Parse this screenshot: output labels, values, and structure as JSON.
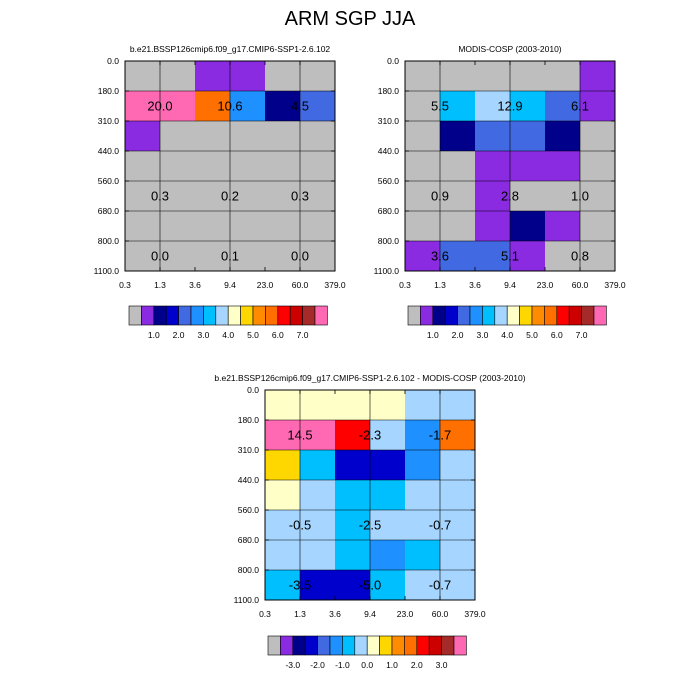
{
  "title": "ARM SGP JJA",
  "colors": {
    "gray": "#bebebe",
    "violet": "#8a2be2",
    "navy": "#00008b",
    "mediumblue": "#0000cd",
    "royalblue": "#4169e1",
    "dodgerblue": "#1e90ff",
    "deepskyblue": "#00bfff",
    "lightskyblue": "#a6d6ff",
    "lightyellow": "#ffffc8",
    "gold": "#ffd700",
    "orange": "#ff8c00",
    "darkorange": "#ff7000",
    "red": "#ff0000",
    "crimson": "#cd0000",
    "firebrick": "#a52a2a",
    "hotpink": "#ff69b4",
    "black": "#000000"
  },
  "chart_data": [
    {
      "type": "heatmap",
      "title": "b.e21.BSSP126cmip6.f09_g17.CMIP6-SSP1-2.6.102",
      "x_ticks": [
        "0.3",
        "1.3",
        "3.6",
        "9.4",
        "23.0",
        "60.0",
        "379.0"
      ],
      "y_ticks": [
        "0.0",
        "180.0",
        "310.0",
        "440.0",
        "560.0",
        "680.0",
        "800.0",
        "1100.0"
      ],
      "grid": true,
      "cells": [
        [
          "gray",
          "gray",
          "violet",
          "violet",
          "gray",
          "gray"
        ],
        [
          "hotpink",
          "hotpink",
          "darkorange",
          "dodgerblue",
          "navy",
          "royalblue"
        ],
        [
          "violet",
          "gray",
          "gray",
          "gray",
          "gray",
          "gray"
        ],
        [
          "gray",
          "gray",
          "gray",
          "gray",
          "gray",
          "gray"
        ],
        [
          "gray",
          "gray",
          "gray",
          "gray",
          "gray",
          "gray"
        ],
        [
          "gray",
          "gray",
          "gray",
          "gray",
          "gray",
          "gray"
        ],
        [
          "gray",
          "gray",
          "gray",
          "gray",
          "gray",
          "gray"
        ]
      ],
      "labels": [
        {
          "text": "20.0",
          "col": 0,
          "row": 1
        },
        {
          "text": "10.6",
          "col": 2,
          "row": 1
        },
        {
          "text": "4.5",
          "col": 4,
          "row": 1
        },
        {
          "text": "0.3",
          "col": 0,
          "row": 4
        },
        {
          "text": "0.2",
          "col": 2,
          "row": 4
        },
        {
          "text": "0.3",
          "col": 4,
          "row": 4
        },
        {
          "text": "0.0",
          "col": 0,
          "row": 6
        },
        {
          "text": "0.1",
          "col": 2,
          "row": 6
        },
        {
          "text": "0.0",
          "col": 4,
          "row": 6
        }
      ],
      "colorbar": {
        "colors": [
          "gray",
          "violet",
          "navy",
          "mediumblue",
          "royalblue",
          "dodgerblue",
          "deepskyblue",
          "lightskyblue",
          "lightyellow",
          "gold",
          "orange",
          "darkorange",
          "red",
          "crimson",
          "firebrick",
          "hotpink"
        ],
        "labels": [
          "1.0",
          "2.0",
          "3.0",
          "4.0",
          "5.0",
          "6.0",
          "7.0"
        ],
        "label_after_box": [
          1,
          3,
          5,
          7,
          9,
          11,
          13
        ]
      }
    },
    {
      "type": "heatmap",
      "title": "MODIS-COSP (2003-2010)",
      "x_ticks": [
        "0.3",
        "1.3",
        "3.6",
        "9.4",
        "23.0",
        "60.0",
        "379.0"
      ],
      "y_ticks": [
        "0.0",
        "180.0",
        "310.0",
        "440.0",
        "560.0",
        "680.0",
        "800.0",
        "1100.0"
      ],
      "grid": true,
      "cells": [
        [
          "gray",
          "gray",
          "gray",
          "gray",
          "gray",
          "violet"
        ],
        [
          "gray",
          "deepskyblue",
          "lightskyblue",
          "deepskyblue",
          "royalblue",
          "violet"
        ],
        [
          "gray",
          "navy",
          "royalblue",
          "royalblue",
          "navy",
          "gray"
        ],
        [
          "gray",
          "gray",
          "violet",
          "violet",
          "violet",
          "gray"
        ],
        [
          "gray",
          "gray",
          "violet",
          "gray",
          "gray",
          "gray"
        ],
        [
          "gray",
          "gray",
          "violet",
          "navy",
          "violet",
          "gray"
        ],
        [
          "violet",
          "royalblue",
          "royalblue",
          "violet",
          "gray",
          "gray"
        ]
      ],
      "labels": [
        {
          "text": "5.5",
          "col": 0,
          "row": 1
        },
        {
          "text": "12.9",
          "col": 2,
          "row": 1
        },
        {
          "text": "6.1",
          "col": 4,
          "row": 1
        },
        {
          "text": "0.9",
          "col": 0,
          "row": 4
        },
        {
          "text": "2.8",
          "col": 2,
          "row": 4
        },
        {
          "text": "1.0",
          "col": 4,
          "row": 4
        },
        {
          "text": "3.6",
          "col": 0,
          "row": 6
        },
        {
          "text": "5.1",
          "col": 2,
          "row": 6
        },
        {
          "text": "0.8",
          "col": 4,
          "row": 6
        }
      ],
      "colorbar": {
        "colors": [
          "gray",
          "violet",
          "navy",
          "mediumblue",
          "royalblue",
          "dodgerblue",
          "deepskyblue",
          "lightskyblue",
          "lightyellow",
          "gold",
          "orange",
          "darkorange",
          "red",
          "crimson",
          "firebrick",
          "hotpink"
        ],
        "labels": [
          "1.0",
          "2.0",
          "3.0",
          "4.0",
          "5.0",
          "6.0",
          "7.0"
        ],
        "label_after_box": [
          1,
          3,
          5,
          7,
          9,
          11,
          13
        ]
      }
    },
    {
      "type": "heatmap",
      "title": "b.e21.BSSP126cmip6.f09_g17.CMIP6-SSP1-2.6.102 - MODIS-COSP (2003-2010)",
      "x_ticks": [
        "0.3",
        "1.3",
        "3.6",
        "9.4",
        "23.0",
        "60.0",
        "379.0"
      ],
      "y_ticks": [
        "0.0",
        "180.0",
        "310.0",
        "440.0",
        "560.0",
        "680.0",
        "800.0",
        "1100.0"
      ],
      "grid": true,
      "cells": [
        [
          "lightyellow",
          "lightyellow",
          "lightyellow",
          "lightyellow",
          "lightskyblue",
          "lightskyblue"
        ],
        [
          "hotpink",
          "hotpink",
          "red",
          "lightskyblue",
          "dodgerblue",
          "darkorange"
        ],
        [
          "gold",
          "deepskyblue",
          "mediumblue",
          "mediumblue",
          "dodgerblue",
          "lightskyblue"
        ],
        [
          "lightyellow",
          "lightskyblue",
          "deepskyblue",
          "deepskyblue",
          "lightskyblue",
          "lightskyblue"
        ],
        [
          "lightskyblue",
          "lightskyblue",
          "deepskyblue",
          "lightskyblue",
          "lightskyblue",
          "lightskyblue"
        ],
        [
          "lightskyblue",
          "lightskyblue",
          "deepskyblue",
          "dodgerblue",
          "deepskyblue",
          "lightskyblue"
        ],
        [
          "deepskyblue",
          "mediumblue",
          "mediumblue",
          "deepskyblue",
          "lightskyblue",
          "lightskyblue"
        ]
      ],
      "labels": [
        {
          "text": "14.5",
          "col": 0,
          "row": 1
        },
        {
          "text": "-2.3",
          "col": 2,
          "row": 1
        },
        {
          "text": "-1.7",
          "col": 4,
          "row": 1
        },
        {
          "text": "-0.5",
          "col": 0,
          "row": 4
        },
        {
          "text": "-2.5",
          "col": 2,
          "row": 4
        },
        {
          "text": "-0.7",
          "col": 4,
          "row": 4
        },
        {
          "text": "-3.5",
          "col": 0,
          "row": 6
        },
        {
          "text": "-5.0",
          "col": 2,
          "row": 6
        },
        {
          "text": "-0.7",
          "col": 4,
          "row": 6
        }
      ],
      "colorbar": {
        "colors": [
          "gray",
          "violet",
          "navy",
          "mediumblue",
          "royalblue",
          "dodgerblue",
          "deepskyblue",
          "lightskyblue",
          "lightyellow",
          "gold",
          "orange",
          "darkorange",
          "red",
          "crimson",
          "firebrick",
          "hotpink"
        ],
        "labels": [
          "-3.0",
          "-2.0",
          "-1.0",
          "0.0",
          "1.0",
          "2.0",
          "3.0"
        ],
        "label_after_box": [
          1,
          3,
          5,
          7,
          9,
          11,
          13
        ]
      }
    }
  ]
}
